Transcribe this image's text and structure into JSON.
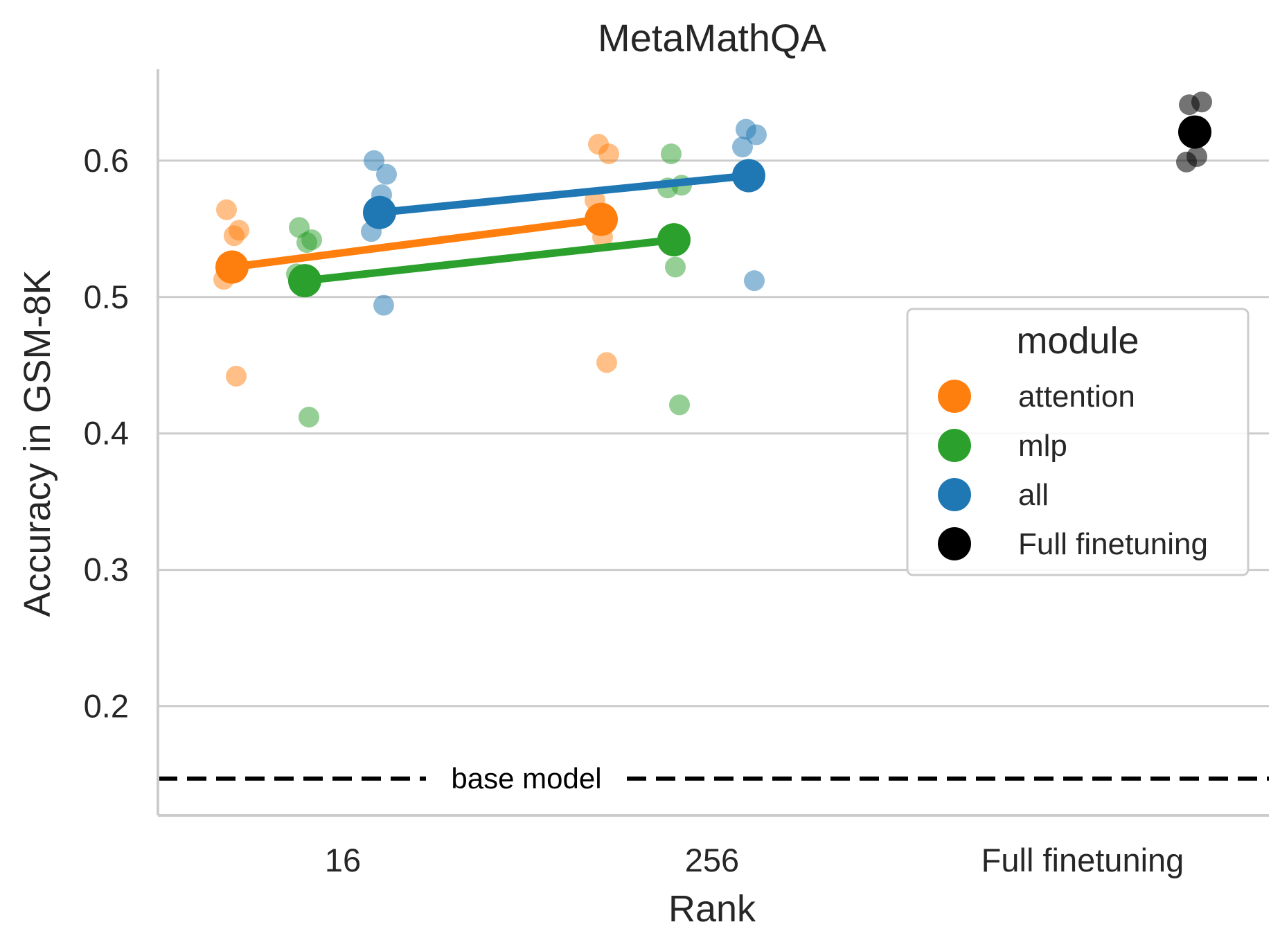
{
  "chart_data": {
    "type": "scatter",
    "title": "MetaMathQA",
    "xlabel": "Rank",
    "ylabel": "Accuracy in GSM-8K",
    "categories": [
      "16",
      "256",
      "Full finetuning"
    ],
    "ylim": [
      0.12,
      0.667
    ],
    "yticks": [
      0.2,
      0.3,
      0.4,
      0.5,
      0.6
    ],
    "ytick_labels": [
      "0.2",
      "0.3",
      "0.4",
      "0.5",
      "0.6"
    ],
    "grid": "horizontal",
    "legend": {
      "title": "module",
      "placement": "center-right",
      "entries": [
        {
          "label": "attention",
          "color": "#ff7f0e"
        },
        {
          "label": "mlp",
          "color": "#2ca02c"
        },
        {
          "label": "all",
          "color": "#1f77b4"
        },
        {
          "label": "Full finetuning",
          "color": "#000000"
        }
      ]
    },
    "series": [
      {
        "name": "attention",
        "color": "#ff7f0e",
        "means": [
          {
            "category": "16",
            "value": 0.522
          },
          {
            "category": "256",
            "value": 0.557
          }
        ],
        "runs": [
          {
            "category": "16",
            "value": 0.564
          },
          {
            "category": "16",
            "value": 0.549
          },
          {
            "category": "16",
            "value": 0.545
          },
          {
            "category": "16",
            "value": 0.513
          },
          {
            "category": "16",
            "value": 0.442
          },
          {
            "category": "256",
            "value": 0.612
          },
          {
            "category": "256",
            "value": 0.605
          },
          {
            "category": "256",
            "value": 0.571
          },
          {
            "category": "256",
            "value": 0.544
          },
          {
            "category": "256",
            "value": 0.452
          }
        ]
      },
      {
        "name": "mlp",
        "color": "#2ca02c",
        "means": [
          {
            "category": "16",
            "value": 0.512
          },
          {
            "category": "256",
            "value": 0.542
          }
        ],
        "runs": [
          {
            "category": "16",
            "value": 0.551
          },
          {
            "category": "16",
            "value": 0.542
          },
          {
            "category": "16",
            "value": 0.54
          },
          {
            "category": "16",
            "value": 0.517
          },
          {
            "category": "16",
            "value": 0.412
          },
          {
            "category": "256",
            "value": 0.605
          },
          {
            "category": "256",
            "value": 0.582
          },
          {
            "category": "256",
            "value": 0.58
          },
          {
            "category": "256",
            "value": 0.522
          },
          {
            "category": "256",
            "value": 0.421
          }
        ]
      },
      {
        "name": "all",
        "color": "#1f77b4",
        "means": [
          {
            "category": "16",
            "value": 0.562
          },
          {
            "category": "256",
            "value": 0.589
          }
        ],
        "runs": [
          {
            "category": "16",
            "value": 0.6
          },
          {
            "category": "16",
            "value": 0.59
          },
          {
            "category": "16",
            "value": 0.575
          },
          {
            "category": "16",
            "value": 0.548
          },
          {
            "category": "16",
            "value": 0.494
          },
          {
            "category": "256",
            "value": 0.623
          },
          {
            "category": "256",
            "value": 0.619
          },
          {
            "category": "256",
            "value": 0.61
          },
          {
            "category": "256",
            "value": 0.585
          },
          {
            "category": "256",
            "value": 0.512
          }
        ]
      },
      {
        "name": "Full finetuning",
        "color": "#000000",
        "means": [
          {
            "category": "Full finetuning",
            "value": 0.621
          }
        ],
        "runs": [
          {
            "category": "Full finetuning",
            "value": 0.641
          },
          {
            "category": "Full finetuning",
            "value": 0.643
          },
          {
            "category": "Full finetuning",
            "value": 0.603
          },
          {
            "category": "Full finetuning",
            "value": 0.599
          }
        ]
      }
    ],
    "reference_line": {
      "label": "base model",
      "value": 0.147,
      "style": "dashed",
      "color": "#000000"
    }
  }
}
